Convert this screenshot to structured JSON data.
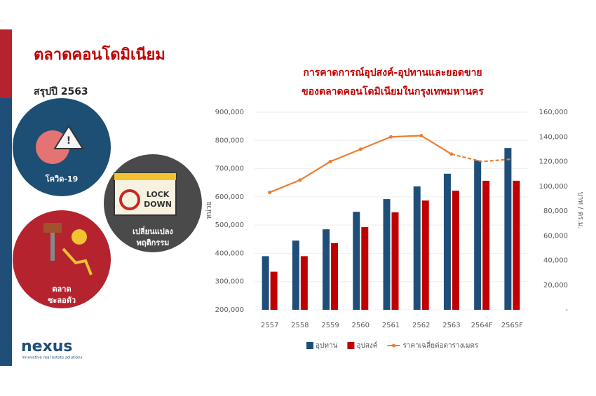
{
  "header": {
    "title": "ตลาดคอนโดมิเนียม",
    "subtitle": "สรุปปี 2563"
  },
  "topics": [
    [
      "โควิด-19"
    ],
    [
      "เปลี่ยนแปลง",
      "พฤติกรรม"
    ],
    [
      "ตลาด",
      "ชะลอตัว"
    ]
  ],
  "logo": {
    "name": "nexus",
    "tagline": "innovative real estate solutions"
  },
  "chart_data": {
    "type": "bar",
    "title": "การคาดการณ์อุปสงค์-อุปทานและยอดขาย",
    "subtitle": "ของตลาดคอนโดมิเนียมในกรุงเทพมหานคร",
    "y_label": "หน่วย",
    "y2_label": "บาท / ตร.ม.",
    "categories": [
      "2557",
      "2558",
      "2559",
      "2560",
      "2561",
      "2562",
      "2563",
      "2564F",
      "2565F"
    ],
    "series": [
      {
        "name": "อุปทาน",
        "type": "bar",
        "color": "#1f4e79",
        "values": [
          390000,
          445000,
          485000,
          547000,
          592000,
          637000,
          682000,
          729000,
          773000
        ]
      },
      {
        "name": "อุปสงค์",
        "type": "bar",
        "color": "#c00000",
        "values": [
          335000,
          390000,
          436000,
          493000,
          545000,
          587000,
          622000,
          657000,
          657000
        ]
      },
      {
        "name": "ราคาเฉลี่ยต่อตารางเมตร",
        "type": "line",
        "axis": "y2",
        "color": "#ed7d31",
        "dashed_from": 6,
        "values": [
          95000,
          105000,
          120000,
          130000,
          140000,
          141000,
          126000,
          120000,
          122000
        ]
      }
    ],
    "ylim": [
      200000,
      900000
    ],
    "yticks": [
      {
        "value": 200000,
        "label": "200,000"
      },
      {
        "value": 300000,
        "label": "300,000"
      },
      {
        "value": 400000,
        "label": "400,000"
      },
      {
        "value": 500000,
        "label": "500,000"
      },
      {
        "value": 600000,
        "label": "600,000"
      },
      {
        "value": 700000,
        "label": "700,000"
      },
      {
        "value": 800000,
        "label": "800,000"
      },
      {
        "value": 900000,
        "label": "900,000"
      }
    ],
    "y2lim": [
      0,
      160000
    ],
    "y2ticks": [
      {
        "value": 0,
        "label": "-"
      },
      {
        "value": 20000,
        "label": "20,000"
      },
      {
        "value": 40000,
        "label": "40,000"
      },
      {
        "value": 60000,
        "label": "60,000"
      },
      {
        "value": 80000,
        "label": "80,000"
      },
      {
        "value": 100000,
        "label": "100,000"
      },
      {
        "value": 120000,
        "label": "120,000"
      },
      {
        "value": 140000,
        "label": "140,000"
      },
      {
        "value": 160000,
        "label": "160,000"
      }
    ],
    "grid": true,
    "legend": "bottom"
  }
}
